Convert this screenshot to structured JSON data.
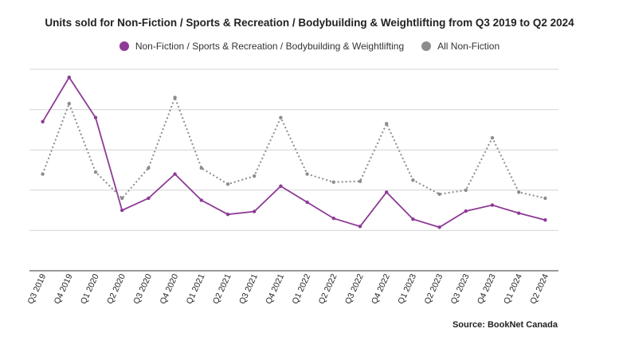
{
  "chart_data": {
    "type": "line",
    "title": "Units sold for Non-Fiction / Sports & Recreation / Bodybuilding & Weightlifting from Q3 2019 to Q2 2024",
    "categories": [
      "Q3 2019",
      "Q4 2019",
      "Q1 2020",
      "Q2 2020",
      "Q3 2020",
      "Q4 2020",
      "Q1 2021",
      "Q2 2021",
      "Q3 2021",
      "Q4 2021",
      "Q1 2022",
      "Q2 2022",
      "Q3 2022",
      "Q4 2022",
      "Q1 2023",
      "Q2 2023",
      "Q3 2023",
      "Q4 2023",
      "Q1 2024",
      "Q2 2024"
    ],
    "series": [
      {
        "name": "Non-Fiction / Sports & Recreation / Bodybuilding & Weightlifting",
        "color": "#8e3a96",
        "style": "solid",
        "values": [
          3.7,
          4.8,
          3.8,
          1.5,
          1.8,
          2.4,
          1.75,
          1.4,
          1.47,
          2.1,
          1.7,
          1.3,
          1.1,
          1.95,
          1.28,
          1.08,
          1.48,
          1.63,
          1.43,
          1.26
        ]
      },
      {
        "name": "All Non-Fiction",
        "color": "#8c8c8c",
        "style": "dotted",
        "values": [
          2.4,
          4.15,
          2.45,
          1.8,
          2.55,
          4.3,
          2.55,
          2.15,
          2.35,
          3.8,
          2.4,
          2.2,
          2.22,
          3.65,
          2.25,
          1.9,
          2.0,
          3.3,
          1.95,
          1.8
        ]
      }
    ],
    "ylim": [
      0,
      5
    ],
    "y_tick_labels_shown": false,
    "grid": true,
    "legend_position": "top-center",
    "xlabel": "",
    "ylabel": ""
  },
  "source_text": "Source: BookNet Canada"
}
